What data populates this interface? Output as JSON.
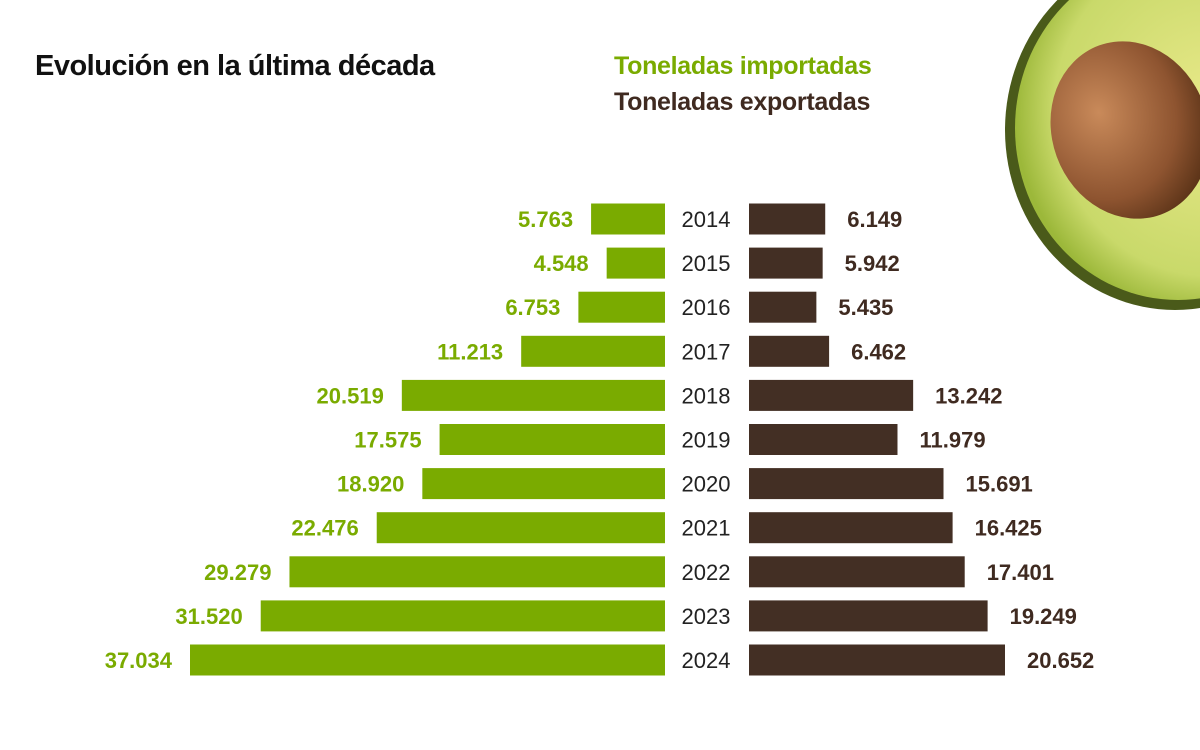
{
  "chart_data": {
    "type": "bar",
    "orientation": "horizontal-diverging",
    "title": "Evolución en la última década",
    "categories": [
      "2014",
      "2015",
      "2016",
      "2017",
      "2018",
      "2019",
      "2020",
      "2021",
      "2022",
      "2023",
      "2024"
    ],
    "series": [
      {
        "name": "Toneladas importadas",
        "color": "#7aab00",
        "side": "left",
        "values": [
          5763,
          4548,
          6753,
          11213,
          20519,
          17575,
          18920,
          22476,
          29279,
          31520,
          37034
        ],
        "labels": [
          "5.763",
          "4.548",
          "6.753",
          "11.213",
          "20.519",
          "17.575",
          "18.920",
          "22.476",
          "29.279",
          "31.520",
          "37.034"
        ]
      },
      {
        "name": "Toneladas exportadas",
        "color": "#432f24",
        "side": "right",
        "values": [
          6149,
          5942,
          5435,
          6462,
          13242,
          11979,
          15691,
          16425,
          17401,
          19249,
          20652
        ],
        "labels": [
          "6.149",
          "5.942",
          "5.435",
          "6.462",
          "13.242",
          "11.979",
          "15.691",
          "16.425",
          "17.401",
          "19.249",
          "20.652"
        ]
      }
    ],
    "legend_placement": "top-right",
    "grid": false
  },
  "decoration": {
    "image": "avocado-half-photo"
  }
}
